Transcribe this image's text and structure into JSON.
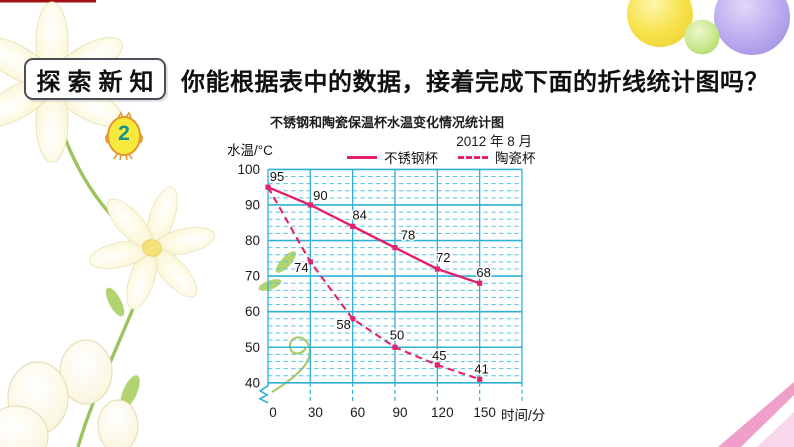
{
  "slide": {
    "badge_label": "探索新知",
    "item_number": "2",
    "heading": "你能根据表中的数据，接着完成下面的折线统计图吗？"
  },
  "chart_data": {
    "type": "line",
    "title": "不锈钢和陶瓷保温杯水温变化情况统计图",
    "date_label": "2012 年 8 月",
    "ylabel": "水温/°C",
    "xlabel": "时间/分",
    "x": [
      0,
      30,
      60,
      90,
      120,
      150
    ],
    "x_tick_labels": [
      "0",
      "30",
      "60",
      "90",
      "120",
      "150"
    ],
    "xlim": [
      0,
      180
    ],
    "ylim": [
      40,
      100
    ],
    "y_tick_step": 10,
    "y_minor_step": 2,
    "y_axis_break": true,
    "grid": true,
    "legend_position": "top",
    "grid_color": "#2fb0d4",
    "grid_minor_color": "#58c4de",
    "series_color": "#e3216f",
    "series": [
      {
        "name": "不锈钢杯",
        "line_style": "solid",
        "values": [
          95,
          90,
          84,
          78,
          72,
          68
        ],
        "point_labels": [
          "95",
          "90",
          "84",
          "78",
          "72",
          "68"
        ],
        "label_dx": [
          9,
          10,
          7,
          13,
          6,
          4
        ],
        "label_dy": [
          -6,
          -5,
          -7,
          -8,
          -7,
          -6
        ]
      },
      {
        "name": "陶瓷杯",
        "line_style": "dashed",
        "values": [
          95,
          74,
          58,
          50,
          45,
          41
        ],
        "point_labels": [
          "",
          "74",
          "58",
          "50",
          "45",
          "41"
        ],
        "label_dx": [
          0,
          -9,
          -9,
          2,
          2,
          2
        ],
        "label_dy": [
          0,
          10,
          10,
          -8,
          -5,
          -6
        ]
      }
    ]
  }
}
